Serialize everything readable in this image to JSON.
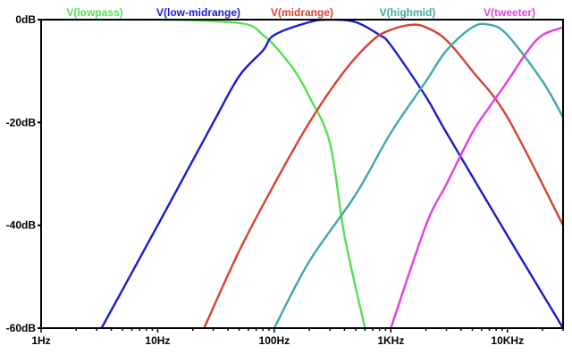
{
  "chart_data": {
    "type": "line",
    "x_scale": "log",
    "xlim_hz": [
      1,
      30000
    ],
    "ylim_db": [
      -60,
      0
    ],
    "grid": false,
    "legend_placement": "top",
    "x_ticks": [
      {
        "value": 1,
        "label": "1Hz"
      },
      {
        "value": 10,
        "label": "10Hz"
      },
      {
        "value": 100,
        "label": "100Hz"
      },
      {
        "value": 1000,
        "label": "1KHz"
      },
      {
        "value": 10000,
        "label": "10KHz"
      }
    ],
    "y_ticks": [
      {
        "value": 0,
        "label": "0dB"
      },
      {
        "value": -20,
        "label": "-20dB"
      },
      {
        "value": -40,
        "label": "-40dB"
      },
      {
        "value": -60,
        "label": "-60dB"
      }
    ],
    "series": [
      {
        "name": "V(lowpass)",
        "color": "#55e055",
        "points": [
          [
            1,
            0
          ],
          [
            10,
            0
          ],
          [
            30,
            -0.3
          ],
          [
            60,
            -1
          ],
          [
            80,
            -3
          ],
          [
            100,
            -5
          ],
          [
            150,
            -10
          ],
          [
            200,
            -15
          ],
          [
            300,
            -24
          ],
          [
            400,
            -42
          ],
          [
            600,
            -60
          ]
        ]
      },
      {
        "name": "V(low-midrange)",
        "color": "#1a1ad0",
        "points": [
          [
            3.3,
            -60
          ],
          [
            10,
            -40
          ],
          [
            30,
            -20
          ],
          [
            50,
            -11
          ],
          [
            80,
            -6
          ],
          [
            100,
            -3
          ],
          [
            200,
            -0.5
          ],
          [
            300,
            0
          ],
          [
            500,
            -0.5
          ],
          [
            800,
            -3
          ],
          [
            1000,
            -5
          ],
          [
            2000,
            -15
          ],
          [
            3000,
            -22
          ],
          [
            10000,
            -42
          ],
          [
            30000,
            -60
          ]
        ]
      },
      {
        "name": "V(midrange)",
        "color": "#d84030",
        "points": [
          [
            25,
            -60
          ],
          [
            50,
            -45
          ],
          [
            100,
            -32
          ],
          [
            200,
            -20
          ],
          [
            400,
            -10
          ],
          [
            700,
            -4
          ],
          [
            1000,
            -2
          ],
          [
            1500,
            -1
          ],
          [
            2000,
            -1.5
          ],
          [
            3000,
            -4
          ],
          [
            5000,
            -10
          ],
          [
            10000,
            -19
          ],
          [
            30000,
            -40
          ]
        ]
      },
      {
        "name": "V(highmid)",
        "color": "#40a8a8",
        "points": [
          [
            100,
            -60
          ],
          [
            200,
            -47
          ],
          [
            500,
            -34
          ],
          [
            1000,
            -22
          ],
          [
            2000,
            -12
          ],
          [
            3000,
            -6
          ],
          [
            5000,
            -1.5
          ],
          [
            7000,
            -1
          ],
          [
            10000,
            -3
          ],
          [
            20000,
            -12
          ],
          [
            30000,
            -19
          ]
        ]
      },
      {
        "name": "V(tweeter)",
        "color": "#e040e0",
        "points": [
          [
            1000,
            -60
          ],
          [
            2000,
            -40
          ],
          [
            3000,
            -32
          ],
          [
            5000,
            -22
          ],
          [
            7000,
            -17
          ],
          [
            10000,
            -12
          ],
          [
            15000,
            -6
          ],
          [
            20000,
            -3
          ],
          [
            30000,
            -1.5
          ]
        ]
      }
    ]
  }
}
